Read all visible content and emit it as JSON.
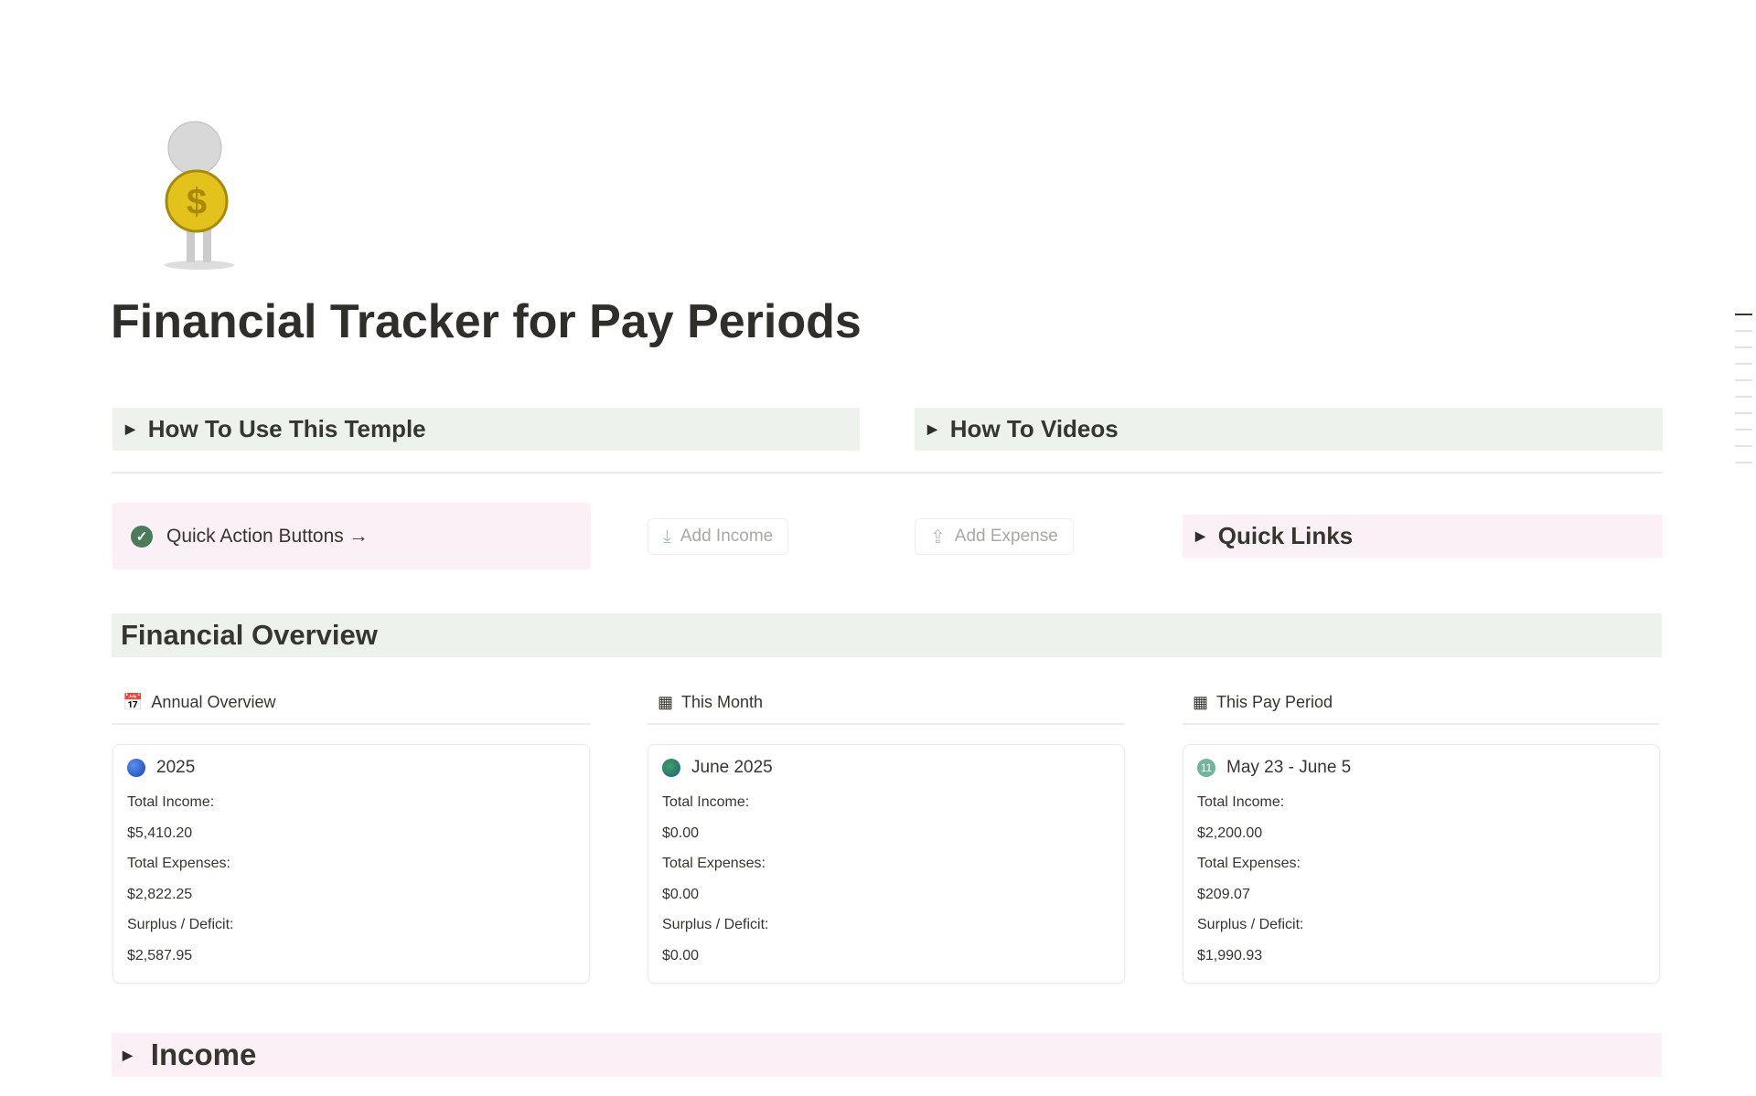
{
  "page": {
    "title": "Financial Tracker for Pay Periods",
    "icon": "person-holding-dollar-coin"
  },
  "toggles": {
    "how_to_use": "How To Use This Temple",
    "how_to_videos": "How To Videos",
    "quick_links": "Quick Links"
  },
  "quick_actions": {
    "label": "Quick Action Buttons →",
    "add_income": "Add Income",
    "add_expense": "Add Expense"
  },
  "overview": {
    "heading": "Financial Overview",
    "columns": [
      {
        "header": "Annual Overview",
        "icon": "calendar-icon",
        "period": "2025",
        "period_icon": "blue-circle",
        "total_income_label": "Total Income:",
        "total_income": "$5,410.20",
        "total_expenses_label": "Total Expenses:",
        "total_expenses": "$2,822.25",
        "surplus_label": "Surplus / Deficit:",
        "surplus": "$2,587.95"
      },
      {
        "header": "This Month",
        "icon": "calendar-grid-icon",
        "period": "June 2025",
        "period_icon": "globe",
        "total_income_label": "Total Income:",
        "total_income": "$0.00",
        "total_expenses_label": "Total Expenses:",
        "total_expenses": "$0.00",
        "surplus_label": "Surplus / Deficit:",
        "surplus": "$0.00"
      },
      {
        "header": "This Pay Period",
        "icon": "calendar-grid-icon",
        "period": "May 23 - June 5",
        "period_icon": "number-11",
        "total_income_label": "Total Income:",
        "total_income": "$2,200.00",
        "total_expenses_label": "Total Expenses:",
        "total_expenses": "$209.07",
        "surplus_label": "Surplus / Deficit:",
        "surplus": "$1,990.93"
      }
    ]
  },
  "income": {
    "heading": "Income"
  },
  "colors": {
    "green_block": "#edf3ec",
    "pink_block": "#fbf0f5",
    "check": "#4a7c59"
  }
}
